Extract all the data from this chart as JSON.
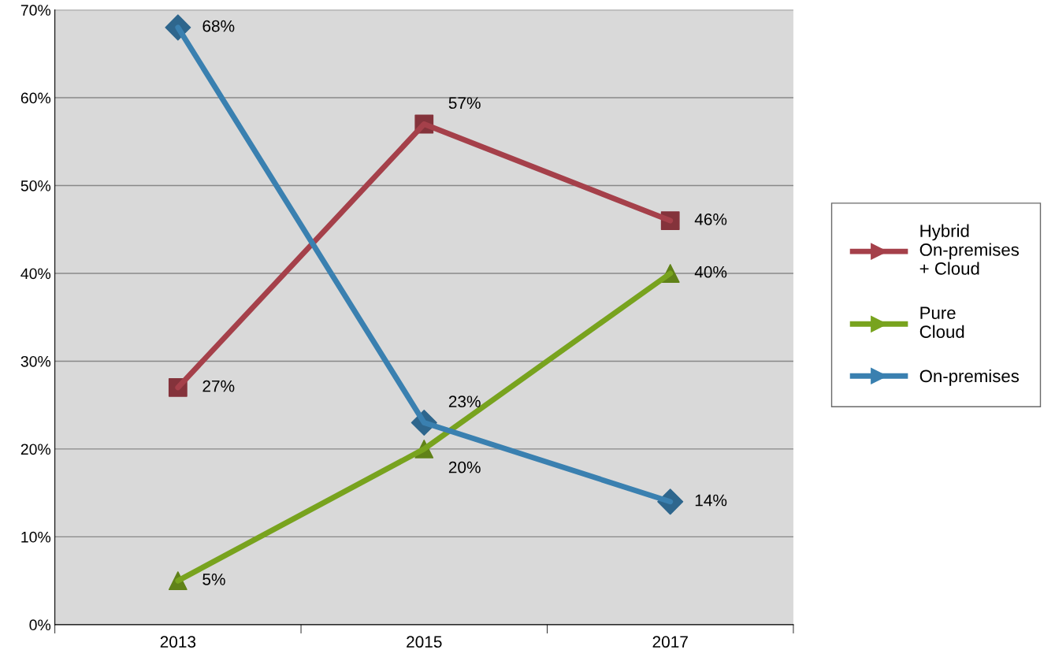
{
  "chart_data": {
    "type": "line",
    "categories": [
      "2013",
      "2015",
      "2017"
    ],
    "series": [
      {
        "name": "Hybrid\nOn-premises\n+ Cloud",
        "color": "#a5404a",
        "marker": "square",
        "values": [
          27,
          57,
          46
        ],
        "value_labels": [
          "27%",
          "57%",
          "46%"
        ]
      },
      {
        "name": "Pure\nCloud",
        "color": "#78a31e",
        "marker": "triangle",
        "values": [
          5,
          20,
          40
        ],
        "value_labels": [
          "5%",
          "20%",
          "40%"
        ]
      },
      {
        "name": "On-premises",
        "color": "#3a80b0",
        "marker": "diamond",
        "values": [
          68,
          23,
          14
        ],
        "value_labels": [
          "68%",
          "23%",
          "14%"
        ]
      }
    ],
    "ylim": [
      0,
      70
    ],
    "yticks": [
      {
        "value": 0,
        "label": "0%"
      },
      {
        "value": 10,
        "label": "10%"
      },
      {
        "value": 20,
        "label": "20%"
      },
      {
        "value": 30,
        "label": "30%"
      },
      {
        "value": 40,
        "label": "40%"
      },
      {
        "value": 50,
        "label": "50%"
      },
      {
        "value": 60,
        "label": "60%"
      },
      {
        "value": 70,
        "label": "70%"
      }
    ],
    "grid": "y",
    "legend": "right",
    "line_style": "solid"
  }
}
